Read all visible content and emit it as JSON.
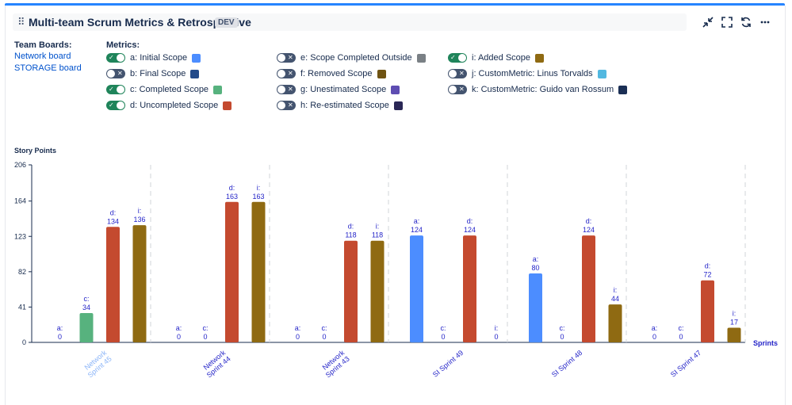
{
  "header": {
    "title": "Multi-team Scrum Metrics & Retrospective",
    "badge": "DEV",
    "icons": [
      "minimize-icon",
      "fullscreen-icon",
      "refresh-icon",
      "more-icon"
    ]
  },
  "team_boards": {
    "label": "Team Boards:",
    "links": [
      "Network board",
      "STORAGE board"
    ]
  },
  "metrics": {
    "label": "Metrics:",
    "items": [
      {
        "key": "a",
        "label": "a: Initial Scope",
        "on": true,
        "color": "#4c8dff"
      },
      {
        "key": "b",
        "label": "b: Final Scope",
        "on": false,
        "color": "#234b8a"
      },
      {
        "key": "c",
        "label": "c: Completed Scope",
        "on": true,
        "color": "#57b27e"
      },
      {
        "key": "d",
        "label": "d: Uncompleted Scope",
        "on": true,
        "color": "#c44a2f"
      },
      {
        "key": "e",
        "label": "e: Scope Completed Outside",
        "on": false,
        "color": "#7a8085"
      },
      {
        "key": "f",
        "label": "f: Removed Scope",
        "on": false,
        "color": "#6f5312"
      },
      {
        "key": "g",
        "label": "g: Unestimated Scope",
        "on": false,
        "color": "#5e4db2"
      },
      {
        "key": "h",
        "label": "h: Re-estimated Scope",
        "on": false,
        "color": "#2a2756"
      },
      {
        "key": "i",
        "label": "i: Added Scope",
        "on": true,
        "color": "#8f6a12"
      },
      {
        "key": "j",
        "label": "j: CustomMetric: Linus Torvalds",
        "on": false,
        "color": "#52b8e0"
      },
      {
        "key": "k",
        "label": "k: CustomMetric: Guido van Rossum",
        "on": false,
        "color": "#1b2f55"
      }
    ]
  },
  "chart_data": {
    "type": "bar",
    "title": "",
    "ylabel": "Story Points",
    "xlabel": "Sprints",
    "ylim": [
      0,
      206
    ],
    "yticks": [
      0,
      41,
      82,
      123,
      164,
      206
    ],
    "categories": [
      "Network Sprint 45",
      "Network Sprint 44",
      "Network Sprint 43",
      "SI Sprint 49",
      "SI Sprint 48",
      "SI Sprint 47"
    ],
    "category_label_lines": [
      [
        "Network",
        "Sprint 45"
      ],
      [
        "Network",
        "Sprint 44"
      ],
      [
        "Network",
        "Sprint 43"
      ],
      [
        "SI Sprint 49"
      ],
      [
        "SI Sprint 48"
      ],
      [
        "SI Sprint 47"
      ]
    ],
    "highlighted_category": 0,
    "series": [
      {
        "name": "a",
        "color": "#4c8dff",
        "values": [
          0,
          0,
          0,
          124,
          80,
          0
        ]
      },
      {
        "name": "c",
        "color": "#57b27e",
        "values": [
          34,
          0,
          0,
          0,
          0,
          0
        ]
      },
      {
        "name": "d",
        "color": "#c44a2f",
        "values": [
          134,
          163,
          118,
          124,
          124,
          72
        ]
      },
      {
        "name": "i",
        "color": "#8f6a12",
        "values": [
          136,
          163,
          118,
          0,
          44,
          17
        ]
      }
    ]
  }
}
